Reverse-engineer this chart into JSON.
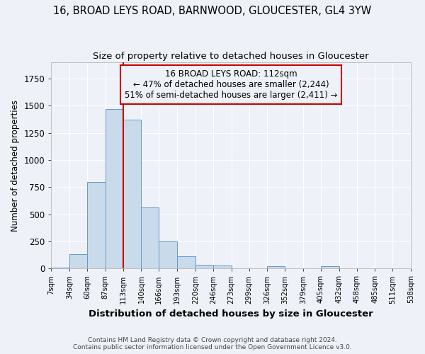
{
  "title1": "16, BROAD LEYS ROAD, BARNWOOD, GLOUCESTER, GL4 3YW",
  "title2": "Size of property relative to detached houses in Gloucester",
  "xlabel": "Distribution of detached houses by size in Gloucester",
  "ylabel": "Number of detached properties",
  "bin_edges": [
    7,
    34,
    60,
    87,
    113,
    140,
    166,
    193,
    220,
    246,
    273,
    299,
    326,
    352,
    379,
    405,
    432,
    458,
    485,
    511,
    538
  ],
  "bar_heights": [
    10,
    130,
    800,
    1470,
    1370,
    565,
    250,
    110,
    35,
    30,
    0,
    0,
    20,
    0,
    0,
    20,
    0,
    0,
    0,
    0
  ],
  "bar_facecolor": "#c9daea",
  "bar_edgecolor": "#6699cc",
  "vline_x": 113,
  "vline_color": "#cc0000",
  "annotation_line1": "16 BROAD LEYS ROAD: 112sqm",
  "annotation_line2": "← 47% of detached houses are smaller (2,244)",
  "annotation_line3": "51% of semi-detached houses are larger (2,411) →",
  "annotation_fontsize": 8.5,
  "background_color": "#eef2f8",
  "grid_color": "#ffffff",
  "footer1": "Contains HM Land Registry data © Crown copyright and database right 2024.",
  "footer2": "Contains public sector information licensed under the Open Government Licence v3.0.",
  "ylim": [
    0,
    1900
  ],
  "title1_fontsize": 10.5,
  "title2_fontsize": 9.5,
  "xlabel_fontsize": 9.5,
  "ylabel_fontsize": 8.5
}
